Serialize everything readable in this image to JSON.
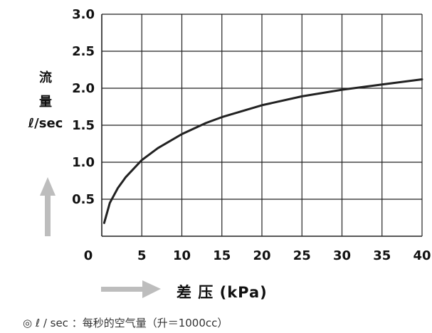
{
  "chart_data": {
    "type": "line",
    "x_ticks": [
      "0",
      "5",
      "10",
      "15",
      "20",
      "25",
      "30",
      "35",
      "40"
    ],
    "y_ticks": [
      "0.5",
      "1.0",
      "1.5",
      "2.0",
      "2.5",
      "3.0"
    ],
    "xlim": [
      0,
      40
    ],
    "ylim": [
      0,
      3.0
    ],
    "grid": true,
    "ylabel_lines": [
      "流",
      "量",
      "ℓ/sec"
    ],
    "xlabel": "差 压 (kPa)",
    "series": [
      {
        "x": [
          0.3,
          1,
          2,
          3,
          5,
          7,
          10,
          13,
          15,
          20,
          25,
          30,
          35,
          40
        ],
        "values": [
          0.18,
          0.45,
          0.65,
          0.8,
          1.03,
          1.19,
          1.38,
          1.53,
          1.61,
          1.77,
          1.89,
          1.98,
          2.05,
          2.12
        ]
      }
    ],
    "colors": {
      "curve": "#222222",
      "grid": "#222222",
      "arrow": "#bbbbbb"
    }
  },
  "footnote": "◎ ℓ / sec ：每秒的空气量（升＝1000cc）"
}
